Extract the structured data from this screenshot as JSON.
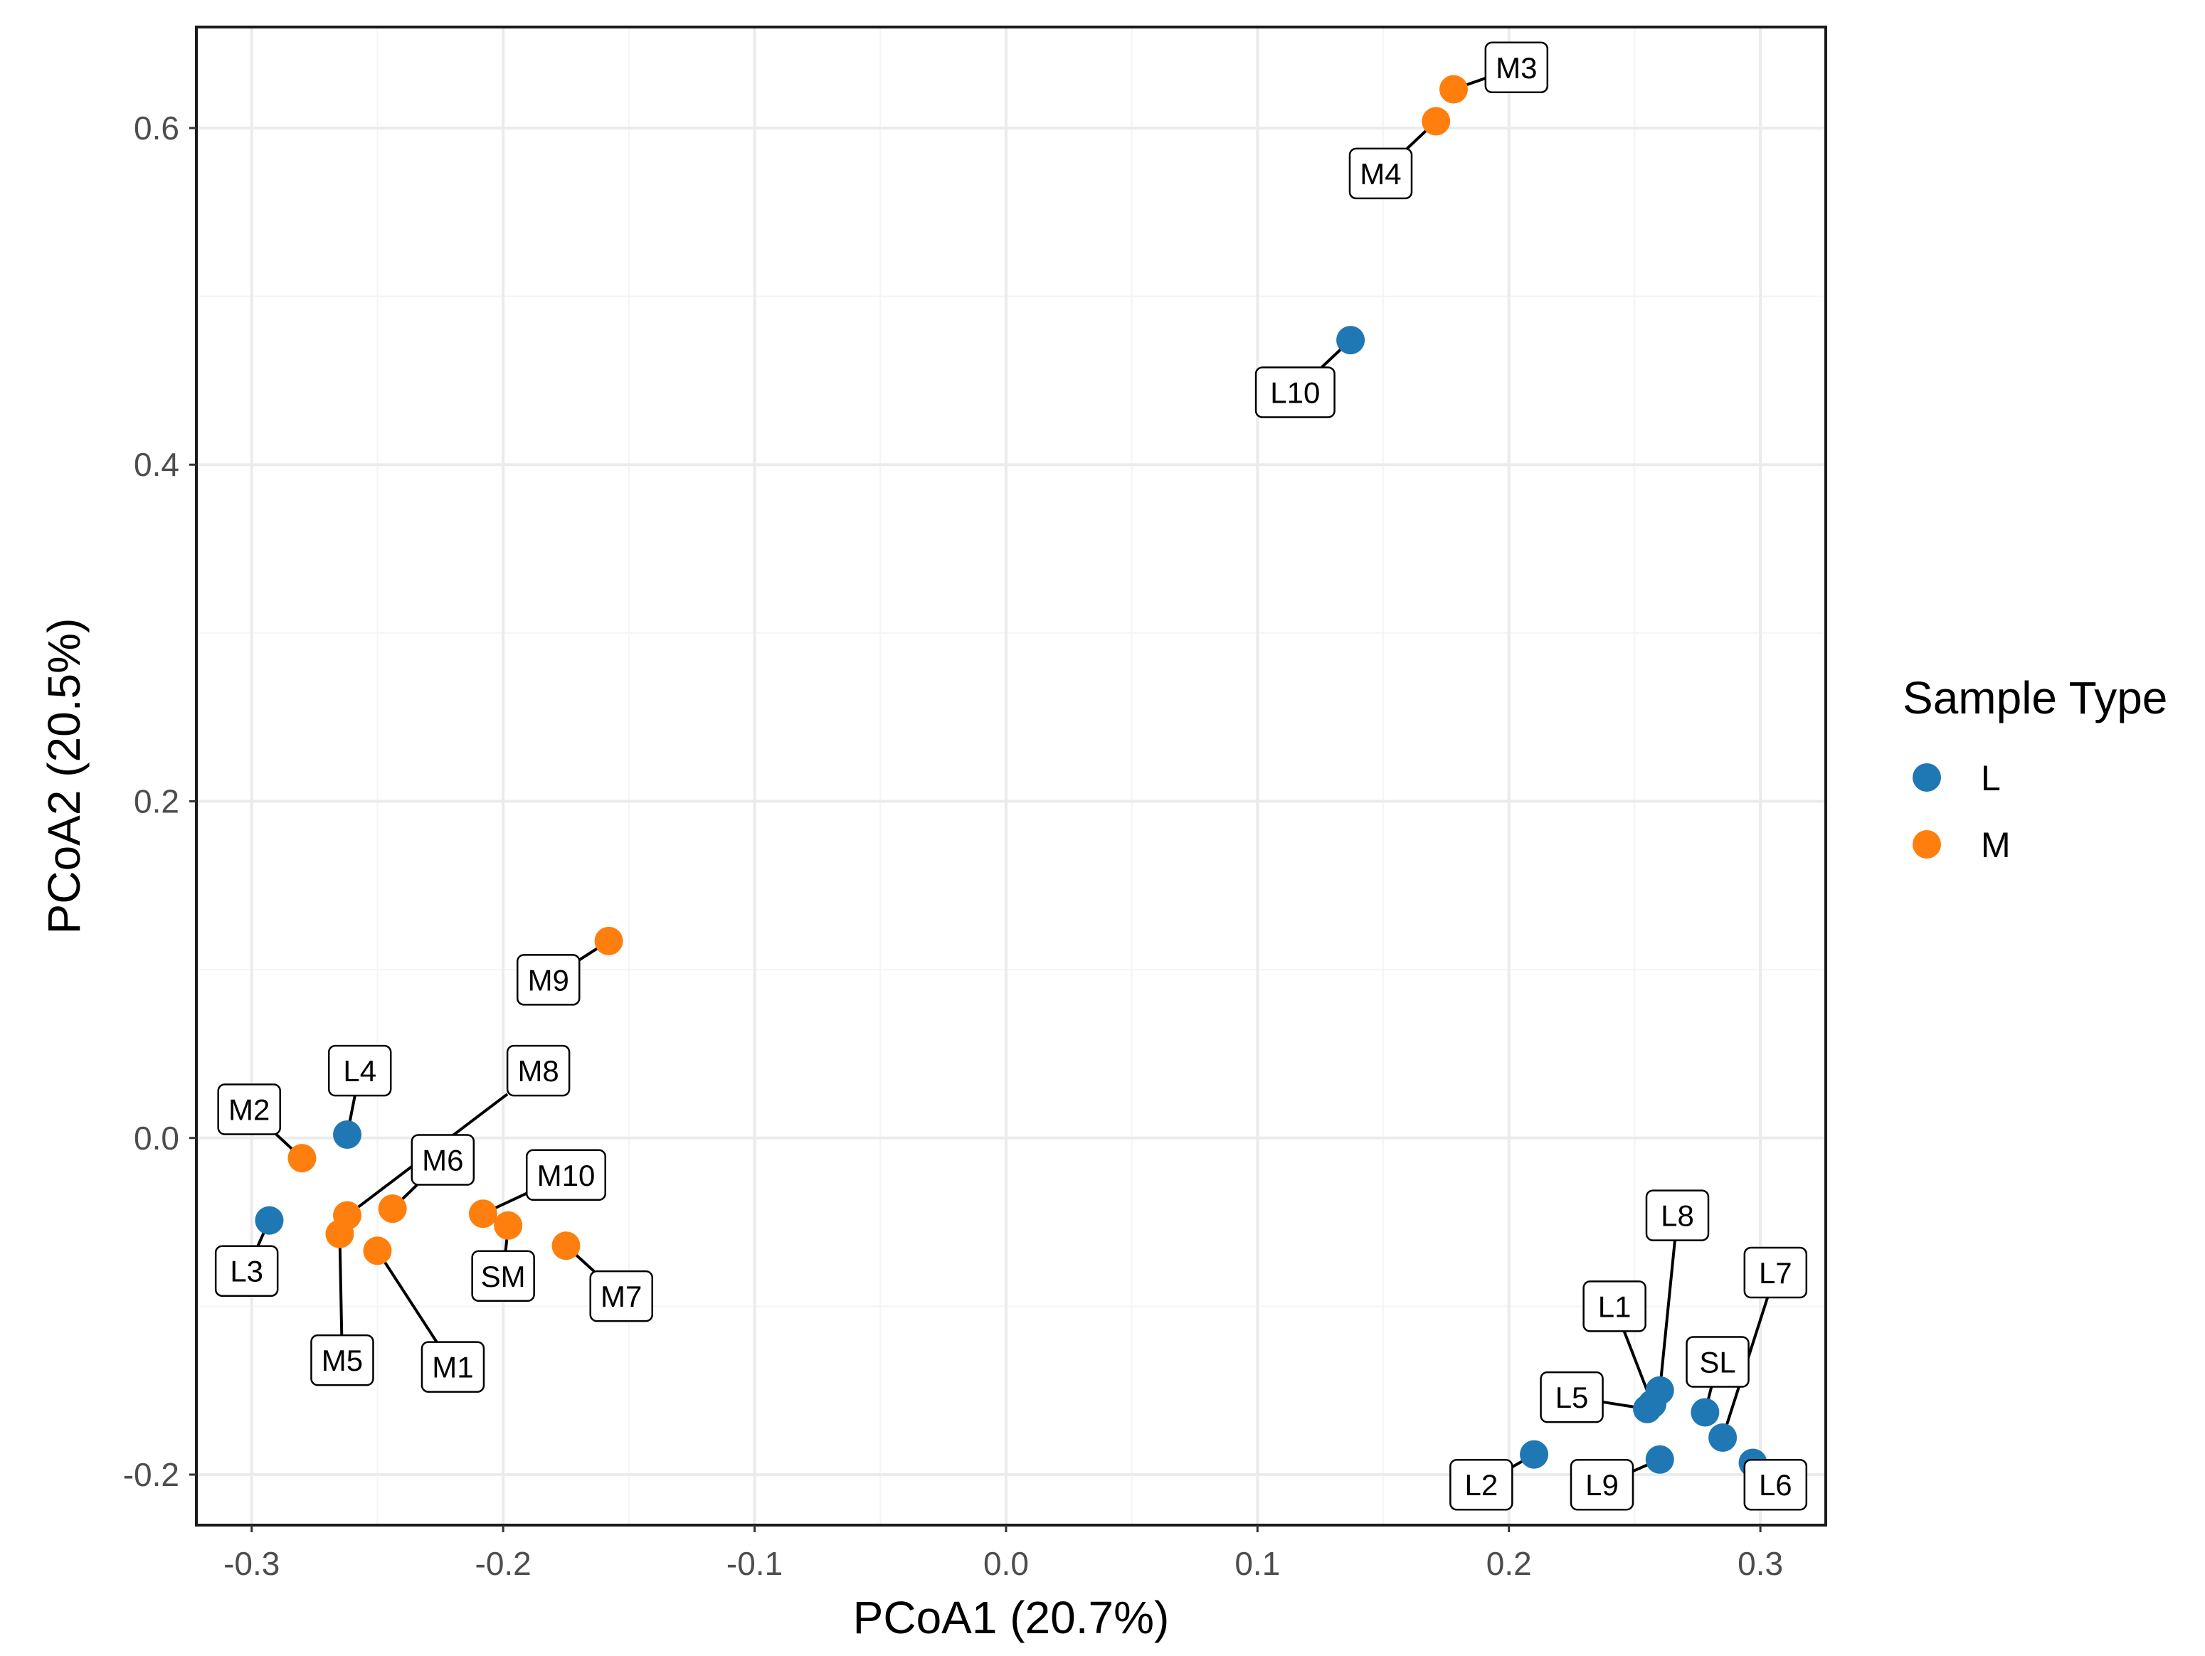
{
  "chart_data": {
    "type": "scatter",
    "title": "",
    "xlabel": "PCoA1 (20.7%)",
    "ylabel": "PCoA2 (20.5%)",
    "xlim": [
      -0.322,
      0.326
    ],
    "ylim": [
      -0.23,
      0.66
    ],
    "xticks": [
      -0.3,
      -0.2,
      -0.1,
      0.0,
      0.1,
      0.2,
      0.3
    ],
    "xtick_labels": [
      "-0.3",
      "-0.2",
      "-0.1",
      "0.0",
      "0.1",
      "0.2",
      "0.3"
    ],
    "yticks": [
      -0.2,
      0.0,
      0.2,
      0.4,
      0.6
    ],
    "ytick_labels": [
      "-0.2",
      "0.0",
      "0.2",
      "0.4",
      "0.6"
    ],
    "grid": true,
    "legend": {
      "title": "Sample Type",
      "position": "right",
      "entries": [
        {
          "label": "L",
          "color": "#1f77b4"
        },
        {
          "label": "M",
          "color": "#ff7f0e"
        }
      ]
    },
    "series": [
      {
        "name": "L",
        "color": "#1f77b4",
        "points": [
          {
            "label": "L1",
            "x": 0.257,
            "y": -0.158,
            "lx": 0.242,
            "ly": -0.1
          },
          {
            "label": "L2",
            "x": 0.21,
            "y": -0.188,
            "lx": 0.189,
            "ly": -0.206
          },
          {
            "label": "L3",
            "x": -0.293,
            "y": -0.049,
            "lx": -0.302,
            "ly": -0.079
          },
          {
            "label": "L4",
            "x": -0.262,
            "y": 0.002,
            "lx": -0.257,
            "ly": 0.04
          },
          {
            "label": "L5",
            "x": 0.255,
            "y": -0.161,
            "lx": 0.225,
            "ly": -0.154
          },
          {
            "label": "L6",
            "x": 0.297,
            "y": -0.193,
            "lx": 0.306,
            "ly": -0.206
          },
          {
            "label": "L7",
            "x": 0.285,
            "y": -0.178,
            "lx": 0.306,
            "ly": -0.08
          },
          {
            "label": "L8",
            "x": 0.26,
            "y": -0.15,
            "lx": 0.267,
            "ly": -0.046
          },
          {
            "label": "L9",
            "x": 0.26,
            "y": -0.191,
            "lx": 0.237,
            "ly": -0.206
          },
          {
            "label": "L10",
            "x": 0.137,
            "y": 0.474,
            "lx": 0.115,
            "ly": 0.443
          },
          {
            "label": "SL",
            "x": 0.278,
            "y": -0.163,
            "lx": 0.283,
            "ly": -0.133
          }
        ]
      },
      {
        "name": "M",
        "color": "#ff7f0e",
        "points": [
          {
            "label": "M1",
            "x": -0.25,
            "y": -0.067,
            "lx": -0.22,
            "ly": -0.136
          },
          {
            "label": "M2",
            "x": -0.28,
            "y": -0.012,
            "lx": -0.301,
            "ly": 0.017
          },
          {
            "label": "M3",
            "x": 0.178,
            "y": 0.623,
            "lx": 0.203,
            "ly": 0.636
          },
          {
            "label": "M4",
            "x": 0.171,
            "y": 0.604,
            "lx": 0.149,
            "ly": 0.573
          },
          {
            "label": "M5",
            "x": -0.265,
            "y": -0.057,
            "lx": -0.264,
            "ly": -0.132
          },
          {
            "label": "M6",
            "x": -0.244,
            "y": -0.042,
            "lx": -0.224,
            "ly": -0.013
          },
          {
            "label": "M7",
            "x": -0.175,
            "y": -0.064,
            "lx": -0.153,
            "ly": -0.094
          },
          {
            "label": "M8",
            "x": -0.262,
            "y": -0.046,
            "lx": -0.186,
            "ly": 0.04
          },
          {
            "label": "M9",
            "x": -0.158,
            "y": 0.117,
            "lx": -0.182,
            "ly": 0.094
          },
          {
            "label": "M10",
            "x": -0.208,
            "y": -0.045,
            "lx": -0.175,
            "ly": -0.022
          },
          {
            "label": "SM",
            "x": -0.198,
            "y": -0.052,
            "lx": -0.2,
            "ly": -0.082
          }
        ]
      }
    ]
  }
}
